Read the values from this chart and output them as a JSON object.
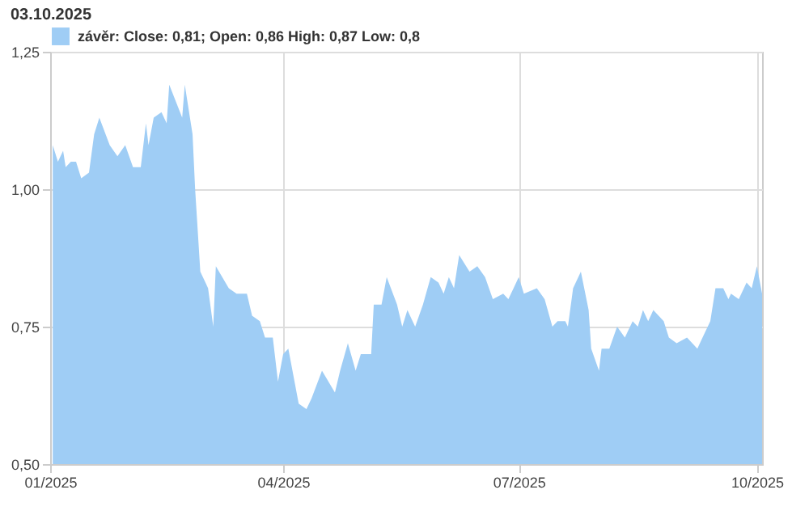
{
  "chart_data": {
    "type": "area",
    "annotations": [
      "03.10.2025"
    ],
    "x": [
      "2025-01-02",
      "2025-01-04",
      "2025-01-06",
      "2025-01-07",
      "2025-01-09",
      "2025-01-11",
      "2025-01-13",
      "2025-01-16",
      "2025-01-18",
      "2025-01-20",
      "2025-01-24",
      "2025-01-27",
      "2025-01-30",
      "2025-02-02",
      "2025-02-05",
      "2025-02-07",
      "2025-02-08",
      "2025-02-10",
      "2025-02-13",
      "2025-02-15",
      "2025-02-16",
      "2025-02-21",
      "2025-02-22",
      "2025-02-25",
      "2025-02-26",
      "2025-02-28",
      "2025-03-03",
      "2025-03-05",
      "2025-03-06",
      "2025-03-11",
      "2025-03-14",
      "2025-03-18",
      "2025-03-20",
      "2025-03-23",
      "2025-03-25",
      "2025-03-28",
      "2025-03-30",
      "2025-04-01",
      "2025-04-03",
      "2025-04-07",
      "2025-04-10",
      "2025-04-12",
      "2025-04-16",
      "2025-04-21",
      "2025-04-23",
      "2025-04-26",
      "2025-04-29",
      "2025-05-01",
      "2025-05-05",
      "2025-05-06",
      "2025-05-09",
      "2025-05-11",
      "2025-05-15",
      "2025-05-17",
      "2025-05-19",
      "2025-05-22",
      "2025-05-25",
      "2025-05-28",
      "2025-05-31",
      "2025-06-02",
      "2025-06-04",
      "2025-06-06",
      "2025-06-08",
      "2025-06-12",
      "2025-06-15",
      "2025-06-18",
      "2025-06-21",
      "2025-06-25",
      "2025-06-27",
      "2025-06-29",
      "2025-07-01",
      "2025-07-03",
      "2025-07-08",
      "2025-07-11",
      "2025-07-14",
      "2025-07-16",
      "2025-07-19",
      "2025-07-20",
      "2025-07-22",
      "2025-07-25",
      "2025-07-28",
      "2025-07-29",
      "2025-08-01",
      "2025-08-02",
      "2025-08-05",
      "2025-08-08",
      "2025-08-11",
      "2025-08-14",
      "2025-08-16",
      "2025-08-18",
      "2025-08-20",
      "2025-08-22",
      "2025-08-26",
      "2025-08-28",
      "2025-08-31",
      "2025-09-04",
      "2025-09-08",
      "2025-09-10",
      "2025-09-13",
      "2025-09-15",
      "2025-09-18",
      "2025-09-20",
      "2025-09-21",
      "2025-09-24",
      "2025-09-27",
      "2025-09-29",
      "2025-10-01",
      "2025-10-03"
    ],
    "series": [
      {
        "name": "závěr: Close: 0,81; Open: 0,86 High: 0,87 Low: 0,8",
        "color": "#9fcdf5",
        "values": [
          1.08,
          1.05,
          1.07,
          1.04,
          1.05,
          1.05,
          1.02,
          1.03,
          1.1,
          1.13,
          1.08,
          1.06,
          1.08,
          1.04,
          1.04,
          1.12,
          1.08,
          1.13,
          1.14,
          1.12,
          1.19,
          1.13,
          1.19,
          1.1,
          1.0,
          0.85,
          0.82,
          0.75,
          0.86,
          0.82,
          0.81,
          0.81,
          0.77,
          0.76,
          0.73,
          0.73,
          0.65,
          0.7,
          0.71,
          0.61,
          0.6,
          0.62,
          0.67,
          0.63,
          0.67,
          0.72,
          0.67,
          0.7,
          0.7,
          0.79,
          0.79,
          0.84,
          0.79,
          0.75,
          0.78,
          0.75,
          0.79,
          0.84,
          0.83,
          0.81,
          0.84,
          0.82,
          0.88,
          0.85,
          0.86,
          0.84,
          0.8,
          0.81,
          0.8,
          0.82,
          0.84,
          0.81,
          0.82,
          0.8,
          0.75,
          0.76,
          0.76,
          0.75,
          0.82,
          0.85,
          0.78,
          0.71,
          0.67,
          0.71,
          0.71,
          0.75,
          0.73,
          0.76,
          0.75,
          0.78,
          0.76,
          0.78,
          0.76,
          0.73,
          0.72,
          0.73,
          0.71,
          0.73,
          0.76,
          0.82,
          0.82,
          0.8,
          0.81,
          0.8,
          0.83,
          0.82,
          0.86,
          0.81
        ]
      }
    ],
    "xlim": [
      "2025-01-01",
      "2025-10-03"
    ],
    "xticks": [
      {
        "value": "2025-01-01",
        "label": "01/2025"
      },
      {
        "value": "2025-04-01",
        "label": "04/2025"
      },
      {
        "value": "2025-07-01",
        "label": "07/2025"
      },
      {
        "value": "2025-10-01",
        "label": "10/2025"
      }
    ],
    "ylim": [
      0.5,
      1.25
    ],
    "yticks": [
      {
        "value": 0.5,
        "label": "0,50"
      },
      {
        "value": 0.75,
        "label": "0,75"
      },
      {
        "value": 1.0,
        "label": "1,00"
      },
      {
        "value": 1.25,
        "label": "1,25"
      }
    ],
    "grid": true,
    "legend": "top left"
  }
}
